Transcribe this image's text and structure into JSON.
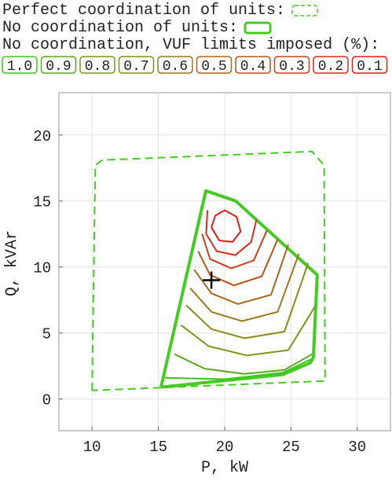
{
  "chart_data": {
    "type": "line",
    "xlabel": "P, kW",
    "ylabel": "Q, kVAr",
    "xlim": [
      7.5,
      32.5
    ],
    "ylim": [
      -2.4,
      23.2
    ],
    "xticks": [
      10,
      15,
      20,
      25,
      30
    ],
    "yticks": [
      0,
      5,
      10,
      15,
      20
    ],
    "grid": true,
    "legend_title": "No coordination, VUF limits imposed (%):",
    "series": [
      {
        "name": "Perfect coordination of units:",
        "color": "#44cc22",
        "style": "dashed",
        "x": [
          10,
          10.24,
          10.77,
          26.6,
          27.5,
          27.57,
          10
        ],
        "y": [
          0.65,
          17.7,
          18.1,
          18.75,
          17.7,
          1.37,
          0.65
        ]
      },
      {
        "name": "No coordination of units:",
        "color": "#44cc22",
        "style": "thick",
        "x": [
          15.2,
          18.58,
          20.83,
          26.98,
          26.69,
          26.45,
          24.38,
          15.2
        ],
        "y": [
          0.9,
          15.77,
          15.0,
          9.4,
          3.15,
          2.74,
          1.85,
          0.9
        ]
      },
      {
        "name": "1.0",
        "color": "#3ec41e",
        "style": "contour",
        "x": [
          15.5,
          20,
          24.4,
          26.5
        ],
        "y": [
          1.6,
          1.5,
          2.0,
          3.0
        ]
      },
      {
        "name": "0.9",
        "color": "#5aa81e",
        "style": "contour",
        "x": [
          16.2,
          18.5,
          21.5,
          24.5,
          26.6
        ],
        "y": [
          3.4,
          2.3,
          1.9,
          2.2,
          3.4
        ]
      },
      {
        "name": "0.8",
        "color": "#78981e",
        "style": "contour",
        "x": [
          16.7,
          18.8,
          21.7,
          24.8,
          26.8
        ],
        "y": [
          5.6,
          4.0,
          3.3,
          3.7,
          7.0
        ]
      },
      {
        "name": "0.7",
        "color": "#8a8a1e",
        "style": "contour",
        "x": [
          17.1,
          19.0,
          21.5,
          24.5,
          26.3
        ],
        "y": [
          7.1,
          5.3,
          4.6,
          5.1,
          10.3
        ]
      },
      {
        "name": "0.6",
        "color": "#9a781e",
        "style": "contour",
        "x": [
          17.4,
          19.0,
          21.3,
          24.0,
          25.6
        ],
        "y": [
          8.4,
          6.6,
          5.9,
          6.6,
          11.0
        ]
      },
      {
        "name": "0.5",
        "color": "#aa661e",
        "style": "contour",
        "x": [
          17.7,
          19.0,
          21.0,
          23.5,
          24.8
        ],
        "y": [
          9.8,
          8.0,
          7.2,
          7.9,
          11.7
        ]
      },
      {
        "name": "0.4",
        "color": "#ba521e",
        "style": "contour",
        "x": [
          18.0,
          18.9,
          20.7,
          22.8,
          24.0
        ],
        "y": [
          11.2,
          9.4,
          8.6,
          9.3,
          12.1
        ]
      },
      {
        "name": "0.3",
        "color": "#ca401e",
        "style": "contour",
        "x": [
          18.3,
          18.9,
          20.5,
          22.2,
          23.2
        ],
        "y": [
          12.5,
          10.6,
          9.9,
          10.5,
          12.8
        ]
      },
      {
        "name": "0.2",
        "color": "#da2c1e",
        "style": "contour",
        "x": [
          18.7,
          18.6,
          19.4,
          20.8,
          22.0,
          22.4
        ],
        "y": [
          14.3,
          12.5,
          11.2,
          10.9,
          11.9,
          13.6
        ]
      },
      {
        "name": "0.1",
        "color": "#e81a1a",
        "style": "contour",
        "x": [
          19.0,
          19.6,
          20.6,
          21.2,
          20.9,
          20.0,
          19.3,
          19.0
        ],
        "y": [
          13.0,
          12.0,
          11.9,
          12.7,
          13.8,
          14.3,
          13.9,
          13.0
        ]
      },
      {
        "color": "#000000",
        "style": "marker",
        "x": [
          19.0
        ],
        "y": [
          9.0
        ]
      }
    ]
  }
}
